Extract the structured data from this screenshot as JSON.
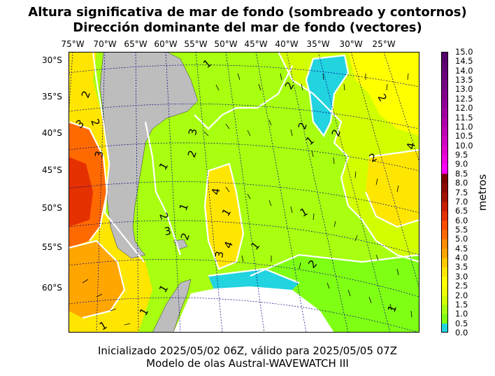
{
  "title_line1": "Altura significativa de mar de fondo (sombreado y contornos)",
  "title_line2": "Dirección dominante del mar de fondo (vectores)",
  "footer_line1": "Inicializado 2025/05/02 06Z, válido para 2025/05/05 07Z",
  "footer_line2": "Modelo de olas Austral-WAVEWATCH III",
  "longitude_labels": [
    "75°W",
    "70°W",
    "65°W",
    "60°W",
    "55°W",
    "50°W",
    "45°W",
    "40°W",
    "35°W",
    "30°W",
    "25°W"
  ],
  "latitude_labels": [
    "30°S",
    "35°S",
    "40°S",
    "45°S",
    "50°S",
    "55°S",
    "60°S"
  ],
  "colorbar": {
    "unit_label": "metros",
    "tick_labels": [
      "0.0",
      "0.5",
      "1.0",
      "1.5",
      "2.0",
      "2.5",
      "3.0",
      "3.5",
      "4.0",
      "4.5",
      "5.0",
      "5.5",
      "6.0",
      "6.5",
      "7.0",
      "7.5",
      "8.0",
      "8.5",
      "9.0",
      "9.5",
      "10.0",
      "10.5",
      "11.0",
      "11.5",
      "12.0",
      "12.5",
      "13.0",
      "13.5",
      "14.0",
      "14.5",
      "15.0"
    ],
    "colors": [
      "#22d3e0",
      "#7fff14",
      "#a8ff10",
      "#d2ff00",
      "#f0ff00",
      "#ffff00",
      "#ffe600",
      "#ffc800",
      "#ffa600",
      "#ff8c00",
      "#ff6a00",
      "#ff4d00",
      "#e53000",
      "#c81e00",
      "#a51200",
      "#8c0a00",
      "#7a0000",
      "#ff00ff",
      "#f000e0",
      "#e000cc",
      "#d000c0",
      "#c000b4",
      "#b000aa",
      "#a000a0",
      "#900096",
      "#82008c",
      "#760084",
      "#6a007c",
      "#600074",
      "#54006a"
    ]
  },
  "contour_labels": [
    "1",
    "1",
    "1",
    "1",
    "1",
    "1",
    "1",
    "1",
    "1",
    "1",
    "1",
    "2",
    "2",
    "2",
    "2",
    "2",
    "2",
    "2",
    "2",
    "2",
    "2",
    "2",
    "3",
    "3",
    "3",
    "3",
    "3",
    "4",
    "4",
    "4"
  ],
  "map_colors": {
    "land": "#bdbdbd",
    "ice_no_data": "#ffffff",
    "contour_line": "#ffffff",
    "graticule": "#000080"
  }
}
